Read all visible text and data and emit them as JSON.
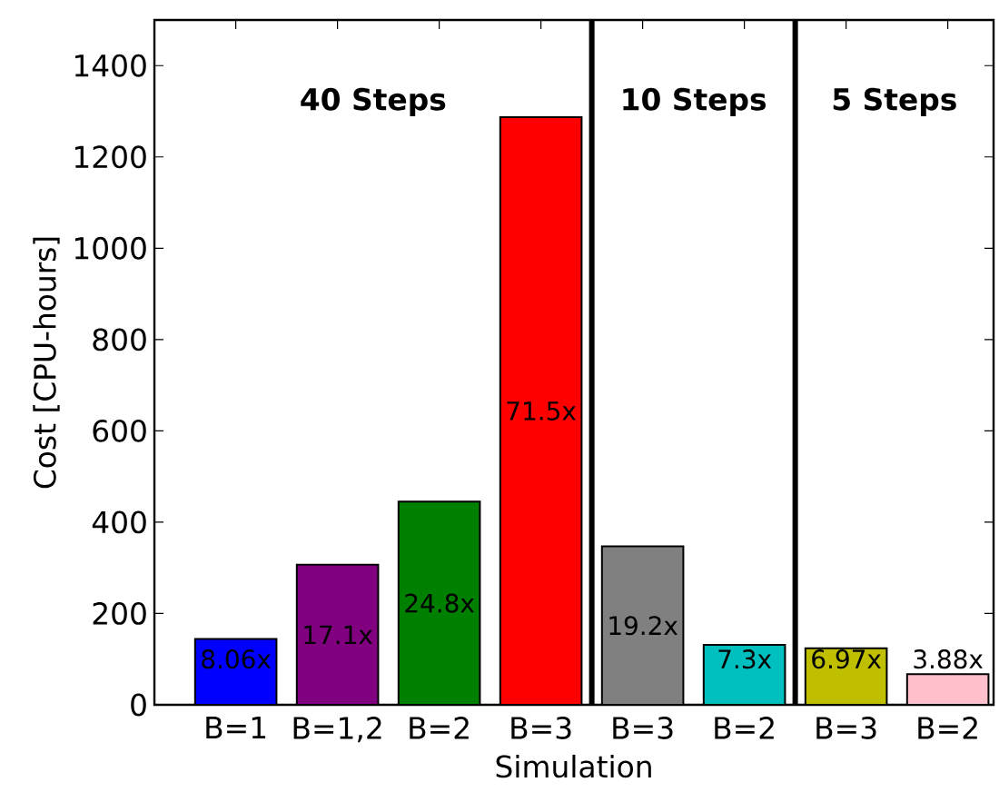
{
  "chart_data": {
    "type": "bar",
    "categories": [
      "B=1",
      "B=1,2",
      "B=2",
      "B=3",
      "B=3",
      "B=2",
      "B=3",
      "B=2"
    ],
    "values": [
      144,
      307,
      445,
      1287,
      347,
      131,
      124,
      67
    ],
    "colors": [
      "#0000ff",
      "#800080",
      "#008000",
      "#ff0000",
      "#808080",
      "#00bfbf",
      "#bfbf00",
      "#ffc0cb"
    ],
    "xlabel": "Simulation",
    "ylabel": "Cost [CPU-hours]",
    "ylim": [
      0,
      1500
    ],
    "yticks": [
      0,
      200,
      400,
      600,
      800,
      1000,
      1200,
      1400
    ],
    "annotations": [
      "40 Steps",
      "10 Steps",
      "5 Steps",
      "8.06x",
      "17.1x",
      "24.8x",
      "71.5x",
      "19.2x",
      "7.3x",
      "6.97x",
      "3.88x"
    ]
  }
}
